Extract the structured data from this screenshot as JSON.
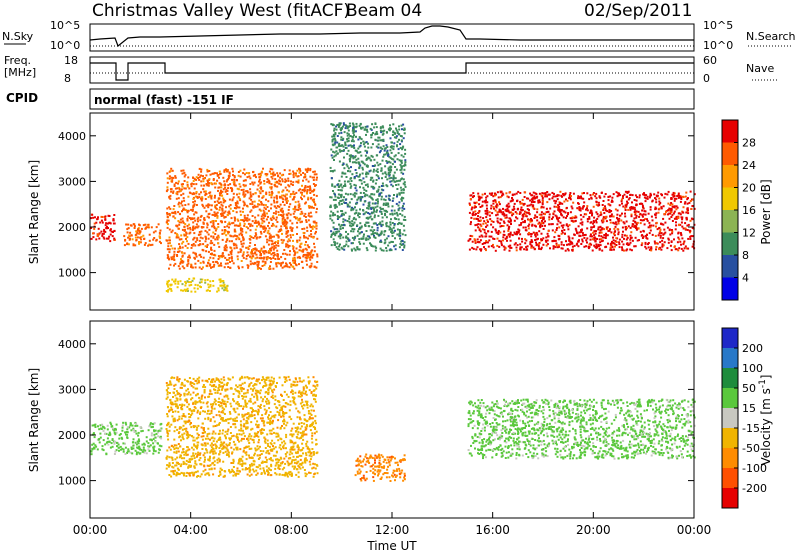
{
  "header": {
    "title": "Christmas Valley West (fitACF)",
    "beam": "Beam 04",
    "date": "02/Sep/2011"
  },
  "top_panels": {
    "nsky_label": "N.Sky",
    "nsky_ticks": [
      "10^5",
      "10^0"
    ],
    "nsearch_label": "N.Search",
    "nsearch_ticks": [
      "10^5",
      "10^0"
    ],
    "freq_label": "Freq.",
    "freq_unit": "[MHz]",
    "freq_ticks": [
      "18",
      "8"
    ],
    "nave_label": "Nave",
    "nave_ticks": [
      "60",
      "0"
    ],
    "cpid_label": "CPID",
    "cpid_text": "normal (fast) -151 IF"
  },
  "chart_data": [
    {
      "type": "heatmap",
      "panel": "power",
      "ylabel": "Slant Range [km]",
      "yticks": [
        "4000",
        "3000",
        "2000",
        "1000"
      ],
      "ylim": [
        180,
        4500
      ],
      "xlim_hours": [
        0,
        24
      ],
      "colorbar_label": "Power [dB]",
      "colorbar_ticks": [
        "28",
        "24",
        "20",
        "16",
        "12",
        "8",
        "4"
      ],
      "colorbar_colors": [
        "#e60000",
        "#ff5a00",
        "#ff9a00",
        "#f0c800",
        "#8cb454",
        "#3c8c5a",
        "#2850a0",
        "#0000e6"
      ],
      "echo_regions": [
        {
          "t0": 0.0,
          "t1": 1.0,
          "r0": 1700,
          "r1": 2300,
          "level": "28"
        },
        {
          "t0": 1.3,
          "t1": 2.8,
          "r0": 1600,
          "r1": 2100,
          "level": "24"
        },
        {
          "t0": 3.0,
          "t1": 9.0,
          "r0": 1100,
          "r1": 3300,
          "level": "24"
        },
        {
          "t0": 3.0,
          "t1": 5.5,
          "r0": 600,
          "r1": 900,
          "level": "16"
        },
        {
          "t0": 9.5,
          "t1": 12.5,
          "r0": 1500,
          "r1": 4300,
          "level": "8"
        },
        {
          "t0": 15.0,
          "t1": 24.0,
          "r0": 1500,
          "r1": 2800,
          "level": "28"
        }
      ]
    },
    {
      "type": "heatmap",
      "panel": "velocity",
      "ylabel": "Slant Range [km]",
      "yticks": [
        "4000",
        "3000",
        "2000",
        "1000"
      ],
      "ylim": [
        180,
        4500
      ],
      "xlim_hours": [
        0,
        24
      ],
      "xlabel": "Time UT",
      "xticks": [
        "00:00",
        "04:00",
        "08:00",
        "12:00",
        "16:00",
        "20:00",
        "00:00"
      ],
      "colorbar_label": "Velocity [m s^-1]",
      "colorbar_ticks": [
        "200",
        "100",
        "50",
        "15",
        "-15",
        "-50",
        "-100",
        "-200"
      ],
      "colorbar_colors": [
        "#1e28c8",
        "#2878c8",
        "#1e8c3c",
        "#5ac83c",
        "#c8c8c0",
        "#f0b400",
        "#ff8c00",
        "#ff5000",
        "#e60000"
      ],
      "echo_regions": [
        {
          "t0": 0.0,
          "t1": 2.8,
          "r0": 1600,
          "r1": 2300,
          "level": "15"
        },
        {
          "t0": 3.0,
          "t1": 9.0,
          "r0": 1100,
          "r1": 3300,
          "level": "-50"
        },
        {
          "t0": 15.0,
          "t1": 24.0,
          "r0": 1500,
          "r1": 2800,
          "level": "15"
        },
        {
          "t0": 10.5,
          "t1": 12.5,
          "r0": 1000,
          "r1": 1600,
          "level": "-100"
        }
      ]
    }
  ]
}
